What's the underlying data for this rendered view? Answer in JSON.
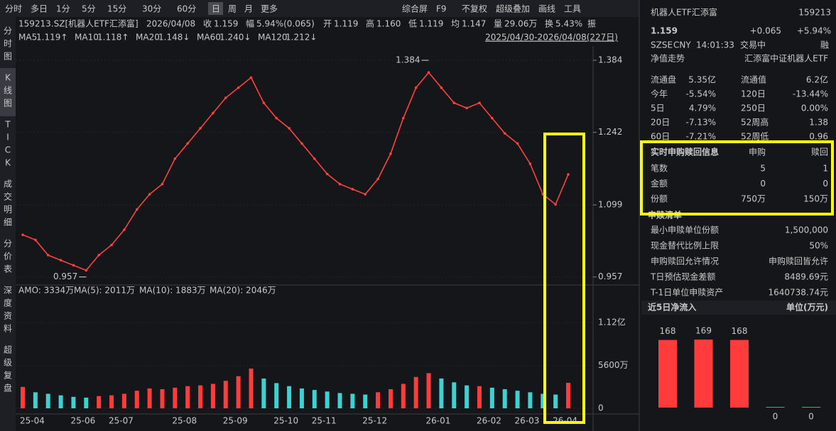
{
  "toolbar": {
    "periods": [
      "分时",
      "多日",
      "1分",
      "5分",
      "15分",
      "30分",
      "60分",
      "日",
      "周",
      "月",
      "更多"
    ],
    "tools": [
      "综合屏",
      "F9",
      "不复权",
      "超级叠加",
      "画线",
      "工具"
    ]
  },
  "side_tabs": [
    "分时图",
    "K线图",
    "TICK",
    "成交明细",
    "分价表",
    "深度资料",
    "超级复盘"
  ],
  "quote_line": [
    "159213.SZ[机器人ETF汇添富]",
    "2026/04/08",
    "收",
    "1.159",
    "幅",
    "5.94%(0.065)",
    "开",
    "1.119",
    "高",
    "1.160",
    "低",
    "1.119",
    "均",
    "1.147",
    "量",
    "29.06万",
    "换",
    "5.43%",
    "振"
  ],
  "ma_line": [
    {
      "name": "MA5",
      "text": "1.119↑",
      "color": "#f0c419"
    },
    {
      "name": "MA10",
      "text": "1.118↑",
      "color": "#f0a030"
    },
    {
      "name": "MA20",
      "text": "1.148↓",
      "color": "#d050e0"
    },
    {
      "name": "MA60",
      "text": "1.240↓",
      "color": "#22c55e"
    },
    {
      "name": "MA120",
      "text": "1.212↓",
      "color": "#40c8e8"
    }
  ],
  "range": "2025/04/30-2026/04/08(227日)",
  "volume_header": [
    "AMO: 3334万",
    "MA(5): 2011万",
    "MA(10): 1883万",
    "MA(20): 2046万"
  ],
  "chart_data": [
    {
      "type": "line",
      "color": "#ff4040",
      "categories": [
        "25-04",
        null,
        null,
        null,
        "25-06",
        null,
        null,
        "25-07",
        null,
        null,
        null,
        null,
        "25-08",
        null,
        null,
        null,
        "25-09",
        null,
        null,
        null,
        "25-10",
        null,
        null,
        "25-11",
        null,
        null,
        null,
        "25-12",
        null,
        null,
        null,
        null,
        "26-01",
        null,
        null,
        null,
        "26-02",
        null,
        null,
        "26-03",
        null,
        null,
        "26-04",
        null
      ],
      "values": [
        1.04,
        1.03,
        1.0,
        0.99,
        0.98,
        0.97,
        1.0,
        1.02,
        1.05,
        1.09,
        1.12,
        1.14,
        1.19,
        1.22,
        1.25,
        1.28,
        1.31,
        1.33,
        1.35,
        1.3,
        1.27,
        1.25,
        1.22,
        1.19,
        1.16,
        1.14,
        1.13,
        1.12,
        1.15,
        1.2,
        1.27,
        1.33,
        1.36,
        1.33,
        1.3,
        1.29,
        1.3,
        1.27,
        1.24,
        1.22,
        1.18,
        1.12,
        1.1,
        1.159
      ],
      "ylim": [
        0.944,
        1.412
      ],
      "yticks": [
        1.384,
        1.242,
        1.099,
        0.957
      ],
      "high_label": 1.384,
      "low_label": 0.957
    },
    {
      "type": "bar",
      "up_color": "#ff3b3b",
      "down_color": "#3fd0d0",
      "values": [
        2800,
        2100,
        1900,
        1700,
        1500,
        1400,
        1600,
        1700,
        1900,
        2300,
        2600,
        2500,
        2700,
        2900,
        3000,
        3200,
        3600,
        4200,
        5200,
        3900,
        3300,
        2900,
        2600,
        2400,
        2200,
        2000,
        1900,
        1800,
        2100,
        2500,
        3200,
        4100,
        4600,
        3900,
        3400,
        3000,
        2900,
        2700,
        2500,
        2300,
        2100,
        1900,
        1800,
        3334
      ],
      "ylim": [
        0,
        14000
      ],
      "yticks": [
        {
          "value": 11200,
          "label": "1.12亿"
        },
        {
          "value": 5600,
          "label": "5600万"
        },
        0
      ]
    }
  ],
  "panel": {
    "name": "机器人ETF汇添富",
    "code": "159213",
    "price": "1.159",
    "change": "+0.065",
    "pct": "+5.94%",
    "status": [
      "SZSE",
      "CNY",
      "14:01:33",
      "交易中",
      "融"
    ],
    "nav_title": "净值走势",
    "fund_name": "汇添富中证机器人ETF",
    "stats": [
      [
        "流通盘",
        "5.35亿",
        "流通值",
        "6.2亿"
      ],
      [
        "今年",
        "-5.54%",
        "120日",
        "-13.44%"
      ],
      [
        "5日",
        "4.79%",
        "250日",
        "0.00%"
      ],
      [
        "20日",
        "-7.13%",
        "52周高",
        "1.38"
      ],
      [
        "60日",
        "-7.21%",
        "52周低",
        "0.96"
      ]
    ],
    "realtime": {
      "header": [
        "实时申购赎回信息",
        "申购",
        "赎回"
      ],
      "rows": [
        [
          "笔数",
          "5",
          "1"
        ],
        [
          "金额",
          "0",
          "0"
        ],
        [
          "份额",
          "750万",
          "150万"
        ]
      ]
    },
    "list_title": "申赎清单",
    "list": [
      [
        "最小申赎单位份额",
        "1,500,000"
      ],
      [
        "现金替代比例上限",
        "50%"
      ],
      [
        "申购赎回允许情况",
        "申购赎回皆允许"
      ],
      [
        "T日预估现金差额",
        "8489.69元"
      ],
      [
        "T-1日单位申赎资产",
        "1640738.74元"
      ]
    ],
    "inflow": {
      "title": "近5日净流入",
      "unit": "单位(万元)",
      "values": [
        168,
        169,
        168,
        0,
        0
      ]
    }
  }
}
